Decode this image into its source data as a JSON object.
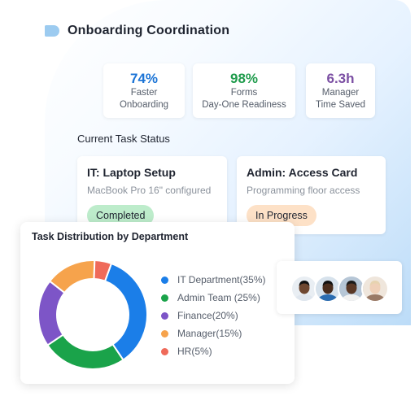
{
  "header": {
    "title": "Onboarding Coordination",
    "icon": "flag-icon"
  },
  "stats": [
    {
      "value": "74%",
      "label_line1": "Faster",
      "label_line2": "Onboarding",
      "color": "#1b74d6"
    },
    {
      "value": "98%",
      "label_line1": "Forms",
      "label_line2": "Day-One Readiness",
      "color": "#1f9b4c"
    },
    {
      "value": "6.3h",
      "label_line1": "Manager",
      "label_line2": "Time Saved",
      "color": "#7b4fa3"
    }
  ],
  "tasks": {
    "section_title": "Current Task Status",
    "items": [
      {
        "title": "IT: Laptop Setup",
        "subtitle": "MacBook Pro 16\" configured",
        "status": "Completed",
        "status_color": "#bdeccb"
      },
      {
        "title": "Admin: Access Card",
        "subtitle": "Programming floor access",
        "status": "In Progress",
        "status_color": "#fde1c7"
      }
    ]
  },
  "chart_data": {
    "type": "pie",
    "title": "Task Distribution by Department",
    "donut": true,
    "legend_position": "right",
    "series": [
      {
        "name": "IT Department",
        "value": 35,
        "label": "IT Department(35%)",
        "color": "#1b7ee8"
      },
      {
        "name": "Admin Team",
        "value": 25,
        "label": "Admin Team (25%)",
        "color": "#1aa34a"
      },
      {
        "name": "Finance",
        "value": 20,
        "label": "Finance(20%)",
        "color": "#7d55c7"
      },
      {
        "name": "Manager",
        "value": 15,
        "label": "Manager(15%)",
        "color": "#f6a34c"
      },
      {
        "name": "HR",
        "value": 5,
        "label": "HR(5%)",
        "color": "#ef6a5a"
      }
    ]
  },
  "team": {
    "avatars": [
      {
        "name": "avatar-1",
        "skin": "#6e4730",
        "hair": "#111111",
        "shirt": "#dfe6ee",
        "bg": "#e9eef3"
      },
      {
        "name": "avatar-2",
        "skin": "#4a2d1d",
        "hair": "#111111",
        "shirt": "#2b6cb0",
        "bg": "#d7e2ec"
      },
      {
        "name": "avatar-3",
        "skin": "#5a3826",
        "hair": "#1b1b1b",
        "shirt": "#f1f1f1",
        "bg": "#b6c6d6"
      },
      {
        "name": "avatar-4",
        "skin": "#efd0b8",
        "hair": "#e7d3b0",
        "shirt": "#9a7a66",
        "bg": "#efe6dc"
      }
    ]
  }
}
